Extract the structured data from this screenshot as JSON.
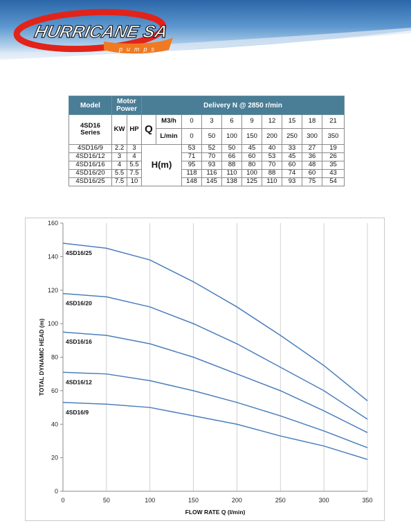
{
  "header": {
    "logo_text": "HURRICANE SA",
    "logo_subtext": "pumps",
    "colors": {
      "banner_top": "#2e6fae",
      "banner_mid": "#8fb9dc",
      "logo_red": "#e2231a",
      "logo_orange": "#f07a22"
    }
  },
  "table": {
    "col_model": "Model",
    "col_motor_power": "Motor Power",
    "col_delivery": "Delivery N @ 2850 r/min",
    "series_label": "4SD16 Series",
    "kw_label": "KW",
    "hp_label": "HP",
    "q_symbol": "Q",
    "m3h_label": "M3/h",
    "lmin_label": "L/min",
    "h_label": "H(m)",
    "m3h_values": [
      "0",
      "3",
      "6",
      "9",
      "12",
      "15",
      "18",
      "21"
    ],
    "lmin_values": [
      "0",
      "50",
      "100",
      "150",
      "200",
      "250",
      "300",
      "350"
    ],
    "rows": [
      {
        "model": "4SD16/9",
        "kw": "2.2",
        "hp": "3",
        "heads": [
          "53",
          "52",
          "50",
          "45",
          "40",
          "33",
          "27",
          "19"
        ]
      },
      {
        "model": "4SD16/12",
        "kw": "3",
        "hp": "4",
        "heads": [
          "71",
          "70",
          "66",
          "60",
          "53",
          "45",
          "36",
          "26"
        ]
      },
      {
        "model": "4SD16/16",
        "kw": "4",
        "hp": "5.5",
        "heads": [
          "95",
          "93",
          "88",
          "80",
          "70",
          "60",
          "48",
          "35"
        ]
      },
      {
        "model": "4SD16/20",
        "kw": "5.5",
        "hp": "7.5",
        "heads": [
          "118",
          "116",
          "110",
          "100",
          "88",
          "74",
          "60",
          "43"
        ]
      },
      {
        "model": "4SD16/25",
        "kw": "7.5",
        "hp": "10",
        "heads": [
          "148",
          "145",
          "138",
          "125",
          "110",
          "93",
          "75",
          "54"
        ]
      }
    ],
    "colors": {
      "header_bg": "#4a7d96",
      "header_text": "#ffffff"
    }
  },
  "chart_data": {
    "type": "line",
    "x": [
      0,
      50,
      100,
      150,
      200,
      250,
      300,
      350
    ],
    "xlabel": "FLOW RATE Q (l/min)",
    "ylabel": "TOTAL DYNAMIC HEAD (m)",
    "xlim": [
      0,
      350
    ],
    "ylim": [
      0,
      160
    ],
    "xticks": [
      0,
      50,
      100,
      150,
      200,
      250,
      300,
      350
    ],
    "yticks": [
      0,
      20,
      40,
      60,
      80,
      100,
      120,
      140,
      160
    ],
    "grid": "vertical",
    "line_color": "#4a7ebb",
    "series": [
      {
        "name": "4SD16/9",
        "values": [
          53,
          52,
          50,
          45,
          40,
          33,
          27,
          19
        ]
      },
      {
        "name": "4SD16/12",
        "values": [
          71,
          70,
          66,
          60,
          53,
          45,
          36,
          26
        ]
      },
      {
        "name": "4SD16/16",
        "values": [
          95,
          93,
          88,
          80,
          70,
          60,
          48,
          35
        ]
      },
      {
        "name": "4SD16/20",
        "values": [
          118,
          116,
          110,
          100,
          88,
          74,
          60,
          43
        ]
      },
      {
        "name": "4SD16/25",
        "values": [
          148,
          145,
          138,
          125,
          110,
          93,
          75,
          54
        ]
      }
    ]
  }
}
